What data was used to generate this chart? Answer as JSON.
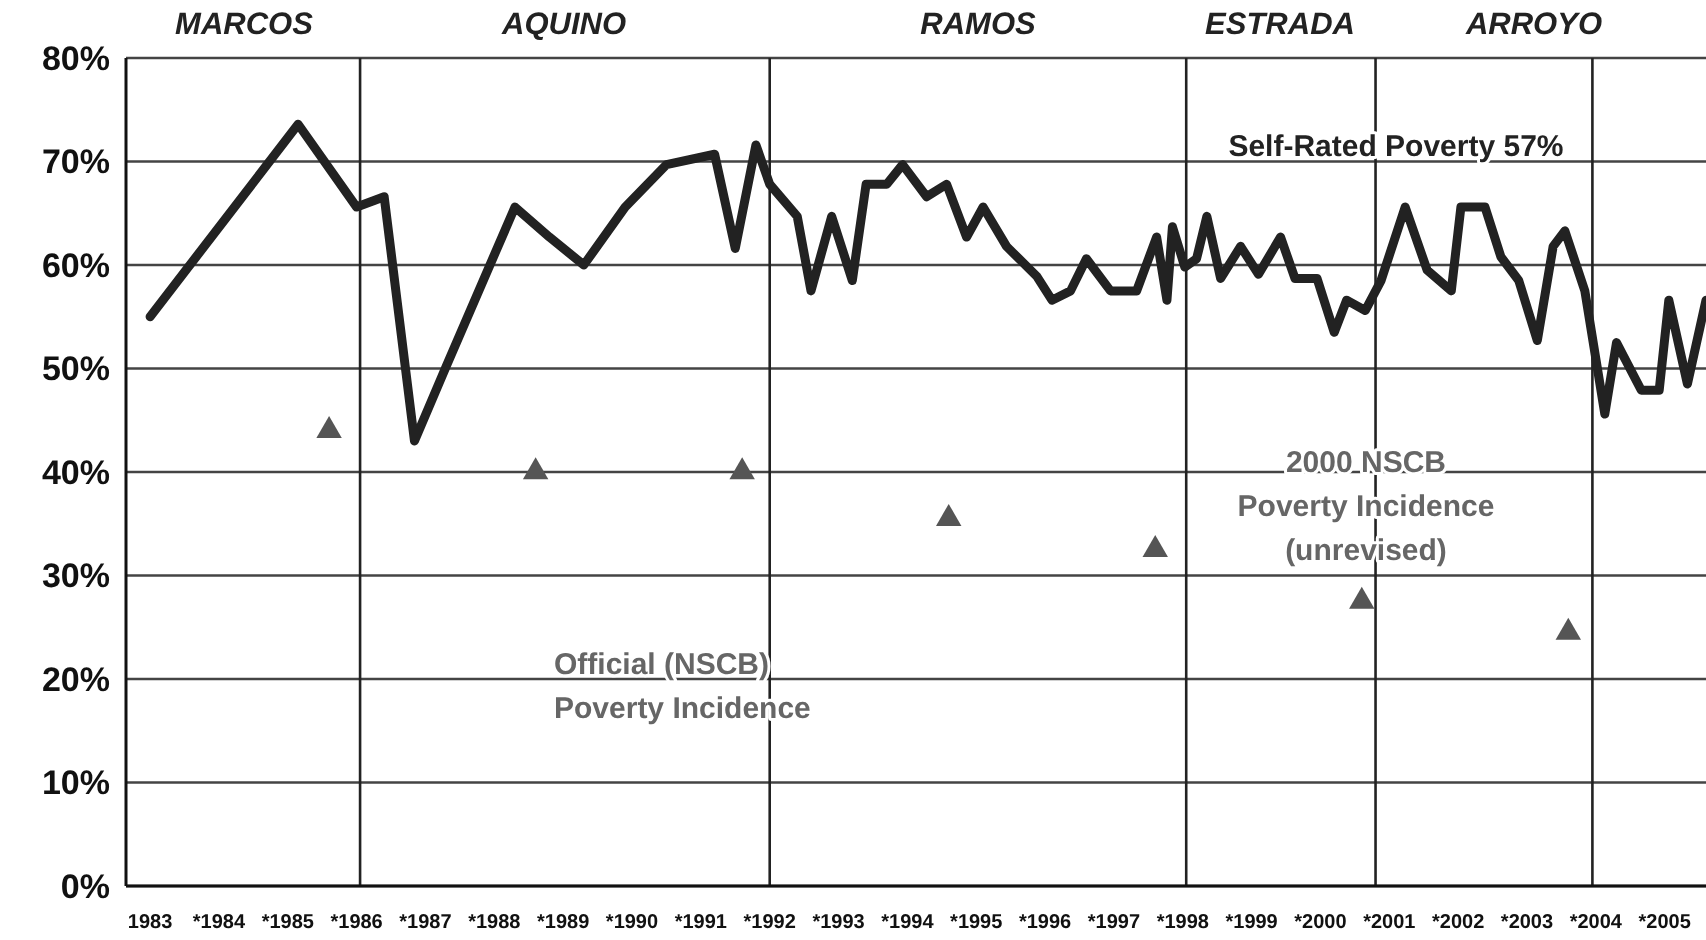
{
  "chart_data": {
    "type": "line",
    "xlim": [
      1982.65,
      2005.6
    ],
    "xticks": [
      {
        "value": 1983,
        "label": "1983"
      },
      {
        "value": 1984,
        "label": "*1984"
      },
      {
        "value": 1985,
        "label": "*1985"
      },
      {
        "value": 1986,
        "label": "*1986"
      },
      {
        "value": 1987,
        "label": "*1987"
      },
      {
        "value": 1988,
        "label": "*1988"
      },
      {
        "value": 1989,
        "label": "*1989"
      },
      {
        "value": 1990,
        "label": "*1990"
      },
      {
        "value": 1991,
        "label": "*1991"
      },
      {
        "value": 1992,
        "label": "*1992"
      },
      {
        "value": 1993,
        "label": "*1993"
      },
      {
        "value": 1994,
        "label": "*1994"
      },
      {
        "value": 1995,
        "label": "*1995"
      },
      {
        "value": 1996,
        "label": "*1996"
      },
      {
        "value": 1997,
        "label": "*1997"
      },
      {
        "value": 1998,
        "label": "*1998"
      },
      {
        "value": 1999,
        "label": "*1999"
      },
      {
        "value": 2000,
        "label": "*2000"
      },
      {
        "value": 2001,
        "label": "*2001"
      },
      {
        "value": 2002,
        "label": "*2002"
      },
      {
        "value": 2003,
        "label": "*2003"
      },
      {
        "value": 2004,
        "label": "*2004"
      },
      {
        "value": 2005,
        "label": "*2005"
      }
    ],
    "ylim": [
      0,
      80
    ],
    "yticks": [
      {
        "value": 0,
        "label": "0%"
      },
      {
        "value": 10,
        "label": "10%"
      },
      {
        "value": 20,
        "label": "20%"
      },
      {
        "value": 30,
        "label": "30%"
      },
      {
        "value": 40,
        "label": "40%"
      },
      {
        "value": 50,
        "label": "50%"
      },
      {
        "value": 60,
        "label": "60%"
      },
      {
        "value": 70,
        "label": "70%"
      },
      {
        "value": 80,
        "label": "80%"
      }
    ],
    "grid": "y",
    "series": [
      {
        "color": "#222222",
        "line_style": "solid",
        "marker": "none",
        "x": [
          1983,
          1985.15,
          1986.0,
          1986.4,
          1986.84,
          1987.3,
          1988.3,
          1988.8,
          1989.3,
          1989.9,
          1990.5,
          1991.2,
          1991.5,
          1991.8,
          1992.0,
          1992.4,
          1992.6,
          1992.9,
          1993.2,
          1993.4,
          1993.7,
          1993.93,
          1994.28,
          1994.57,
          1994.86,
          1995.1,
          1995.44,
          1995.88,
          1996.1,
          1996.37,
          1996.6,
          1996.95,
          1997.33,
          1997.62,
          1997.77,
          1997.85,
          1998.03,
          1998.2,
          1998.35,
          1998.55,
          1998.84,
          1999.1,
          1999.42,
          1999.63,
          1999.95,
          2000.2,
          2000.38,
          2000.65,
          2000.88,
          2001.23,
          2001.55,
          2001.9,
          2002.04,
          2002.39,
          2002.62,
          2002.88,
          2003.15,
          2003.38,
          2003.55,
          2003.84,
          2004.13,
          2004.3,
          2004.66,
          2004.92,
          2005.06,
          2005.33,
          2005.6
        ],
        "values": [
          55,
          73.6,
          65.6,
          66.6,
          43,
          50.2,
          65.6,
          62.7,
          60,
          65.6,
          69.7,
          70.7,
          61.6,
          71.6,
          67.8,
          64.7,
          57.5,
          64.7,
          58.5,
          67.8,
          67.8,
          69.7,
          66.6,
          67.8,
          62.7,
          65.6,
          61.8,
          58.9,
          56.6,
          57.5,
          60.6,
          57.5,
          57.5,
          62.7,
          56.6,
          63.7,
          59.8,
          60.6,
          64.7,
          58.7,
          61.8,
          59.1,
          62.7,
          58.7,
          58.7,
          53.5,
          56.6,
          55.6,
          58.5,
          65.6,
          59.5,
          57.5,
          65.6,
          65.6,
          60.8,
          58.5,
          52.7,
          61.8,
          63.3,
          57.5,
          45.6,
          52.5,
          47.9,
          47.9,
          56.6,
          48.5,
          56.6
        ]
      },
      {
        "type": "scatter",
        "color": "#555555",
        "marker": "triangle",
        "x": [
          1985.6,
          1988.6,
          1991.6,
          1994.6,
          1997.6,
          2000.6,
          2003.6
        ],
        "values": [
          44,
          40,
          40,
          35.5,
          32.5,
          27.5,
          24.5
        ]
      }
    ],
    "ref_lines": [
      {
        "axis": "x",
        "value": 1986.05,
        "color": "#222222"
      },
      {
        "axis": "x",
        "value": 1992.0,
        "color": "#222222"
      },
      {
        "axis": "x",
        "value": 1998.05,
        "color": "#222222"
      },
      {
        "axis": "x",
        "value": 2000.8,
        "color": "#222222"
      },
      {
        "axis": "x",
        "value": 2003.95,
        "color": "#222222"
      }
    ],
    "annotations": [
      "Self-Rated Poverty 57%",
      "Official (NSCB)\nPoverty Incidence",
      "2000 NSCB\nPoverty Incidence\n(unrevised)",
      "MARCOS",
      "AQUINO",
      "RAMOS",
      "ESTRADA",
      "ARROYO"
    ]
  }
}
